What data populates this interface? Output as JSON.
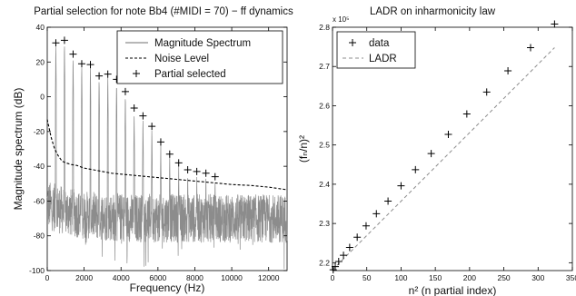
{
  "chart_data": [
    {
      "type": "line",
      "title": "Partial selection for note Bb4 (#MIDI = 70) − ff dynamics",
      "xlabel": "Frequency (Hz)",
      "ylabel": "Magnitude spectrum (dB)",
      "xlim": [
        0,
        13000
      ],
      "ylim": [
        -100,
        40
      ],
      "xticks": [
        0,
        2000,
        4000,
        6000,
        8000,
        10000,
        12000
      ],
      "yticks": [
        -100,
        -80,
        -60,
        -40,
        -20,
        0,
        20,
        40
      ],
      "grid": false,
      "legend": {
        "placement": "top-right",
        "entries": [
          "Magnitude Spectrum",
          "Noise Level",
          "Partial selected"
        ]
      },
      "series": [
        {
          "name": "Partial selected",
          "style": "plus",
          "color": "#000000",
          "x": [
            466,
            933,
            1401,
            1870,
            2340,
            2811,
            3283,
            3757,
            4233,
            4710,
            5189,
            5670,
            6153,
            6638,
            7125,
            7614,
            8106,
            8600,
            9097
          ],
          "y": [
            31,
            32.5,
            24.5,
            19,
            18.5,
            12,
            13,
            10,
            3,
            -6.5,
            -11,
            -17,
            -26,
            -33,
            -38,
            -42,
            -43,
            -44,
            -46
          ]
        },
        {
          "name": "Noise Level",
          "style": "dashed",
          "color": "#000000",
          "x": [
            0,
            200,
            400,
            600,
            800,
            1000,
            1300,
            1600,
            2000,
            2500,
            3000,
            3500,
            4000,
            5000,
            6000,
            7000,
            8000,
            9000,
            10000,
            11000,
            12000,
            13000
          ],
          "y": [
            -13,
            -23,
            -30,
            -34,
            -37,
            -38,
            -39,
            -39.5,
            -41,
            -42,
            -43,
            -44,
            -44.5,
            -45.5,
            -46.5,
            -47.5,
            -48.5,
            -49.5,
            -50.5,
            -51,
            -52,
            -53.5
          ]
        },
        {
          "name": "Magnitude Spectrum",
          "style": "solid",
          "color": "#8c8c8c",
          "peaks_x": [
            466,
            933,
            1401,
            1870,
            2340,
            2811,
            3283,
            3757,
            4233,
            4710,
            5189,
            5670,
            6153,
            6638,
            7125,
            7614,
            8106,
            8600,
            9097
          ],
          "peaks_y": [
            31,
            32.5,
            24.5,
            19,
            18.5,
            12,
            13,
            10,
            3,
            -6.5,
            -11,
            -17,
            -26,
            -33,
            -38,
            -42,
            -43,
            -44,
            -46
          ],
          "floor_range": [
            -85,
            -50
          ]
        }
      ]
    },
    {
      "type": "scatter",
      "title": "LADR on inharmonicity law",
      "xlabel": "n² (n partial index)",
      "ylabel": "(fₙ/n)²",
      "y_multiplier": "x 10⁵",
      "xlim": [
        0,
        350
      ],
      "ylim": [
        2.18,
        2.8
      ],
      "xticks": [
        0,
        50,
        100,
        150,
        200,
        250,
        300,
        350
      ],
      "yticks": [
        2.2,
        2.3,
        2.4,
        2.5,
        2.6,
        2.7,
        2.8
      ],
      "grid": false,
      "legend": {
        "placement": "top-left",
        "entries": [
          "data",
          "LADR"
        ]
      },
      "series": [
        {
          "name": "data",
          "style": "plus",
          "color": "#000000",
          "x": [
            1,
            4,
            9,
            16,
            25,
            36,
            49,
            64,
            81,
            100,
            121,
            144,
            169,
            196,
            225,
            256,
            289,
            324
          ],
          "y": [
            2.182,
            2.19,
            2.203,
            2.219,
            2.239,
            2.265,
            2.294,
            2.325,
            2.357,
            2.396,
            2.437,
            2.478,
            2.527,
            2.579,
            2.635,
            2.689,
            2.748,
            2.808
          ]
        },
        {
          "name": "LADR",
          "style": "dashed",
          "color": "#8c8c8c",
          "x": [
            0,
            324
          ],
          "y": [
            2.182,
            2.748
          ]
        }
      ]
    }
  ]
}
